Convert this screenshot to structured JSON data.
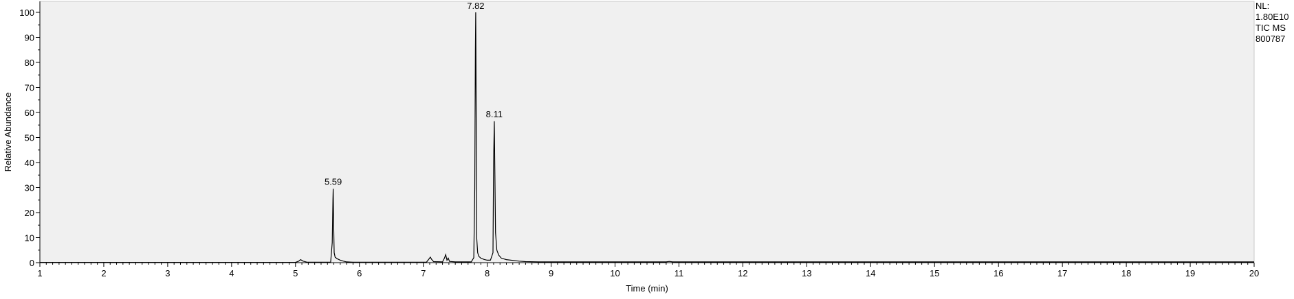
{
  "chart_data": {
    "type": "line",
    "xlabel": "Time (min)",
    "ylabel": "Relative Abundance",
    "xlim": [
      1,
      20
    ],
    "ylim": [
      0,
      100
    ],
    "x_ticks": [
      "1",
      "2",
      "3",
      "4",
      "5",
      "6",
      "7",
      "8",
      "9",
      "10",
      "11",
      "12",
      "13",
      "14",
      "15",
      "16",
      "17",
      "18",
      "19",
      "20"
    ],
    "y_ticks": [
      "0",
      "10",
      "20",
      "30",
      "40",
      "50",
      "60",
      "70",
      "80",
      "90",
      "100"
    ],
    "info": [
      "NL:",
      "1.80E10",
      "TIC  MS",
      "800787"
    ],
    "background_color": "#f0f0f0",
    "line_color": "#000000",
    "peak_labels": [
      {
        "label": "5.59",
        "x": 5.59,
        "y": 29.5
      },
      {
        "label": "7.82",
        "x": 7.82,
        "y": 100
      },
      {
        "label": "8.11",
        "x": 8.11,
        "y": 56.5
      }
    ],
    "series": [
      {
        "points": [
          [
            1.0,
            0.1
          ],
          [
            5.0,
            0.1
          ],
          [
            5.05,
            0.6
          ],
          [
            5.08,
            1.2
          ],
          [
            5.12,
            0.6
          ],
          [
            5.18,
            0.2
          ],
          [
            5.55,
            0.2
          ],
          [
            5.575,
            8
          ],
          [
            5.585,
            25
          ],
          [
            5.59,
            29.5
          ],
          [
            5.595,
            18
          ],
          [
            5.605,
            4
          ],
          [
            5.62,
            2.2
          ],
          [
            5.65,
            1.6
          ],
          [
            5.7,
            1.0
          ],
          [
            5.75,
            0.6
          ],
          [
            5.8,
            0.3
          ],
          [
            5.9,
            0.2
          ],
          [
            7.05,
            0.2
          ],
          [
            7.09,
            1.5
          ],
          [
            7.11,
            2.2
          ],
          [
            7.13,
            1.3
          ],
          [
            7.16,
            0.4
          ],
          [
            7.3,
            0.3
          ],
          [
            7.33,
            1.8
          ],
          [
            7.35,
            3.2
          ],
          [
            7.37,
            1.0
          ],
          [
            7.39,
            1.8
          ],
          [
            7.41,
            0.5
          ],
          [
            7.5,
            0.3
          ],
          [
            7.75,
            0.3
          ],
          [
            7.79,
            2
          ],
          [
            7.805,
            30
          ],
          [
            7.815,
            85
          ],
          [
            7.82,
            100
          ],
          [
            7.825,
            70
          ],
          [
            7.835,
            10
          ],
          [
            7.85,
            4
          ],
          [
            7.87,
            2.5
          ],
          [
            7.9,
            1.8
          ],
          [
            7.95,
            1.3
          ],
          [
            8.0,
            1.0
          ],
          [
            8.05,
            1.0
          ],
          [
            8.09,
            4
          ],
          [
            8.1,
            40
          ],
          [
            8.11,
            56.5
          ],
          [
            8.12,
            35
          ],
          [
            8.13,
            12
          ],
          [
            8.15,
            5
          ],
          [
            8.18,
            3
          ],
          [
            8.22,
            1.8
          ],
          [
            8.3,
            1.2
          ],
          [
            8.4,
            0.9
          ],
          [
            8.5,
            0.6
          ],
          [
            8.6,
            0.4
          ],
          [
            8.8,
            0.3
          ],
          [
            10.8,
            0.3
          ],
          [
            10.85,
            0.5
          ],
          [
            10.9,
            0.3
          ],
          [
            20.0,
            0.3
          ]
        ]
      }
    ]
  }
}
